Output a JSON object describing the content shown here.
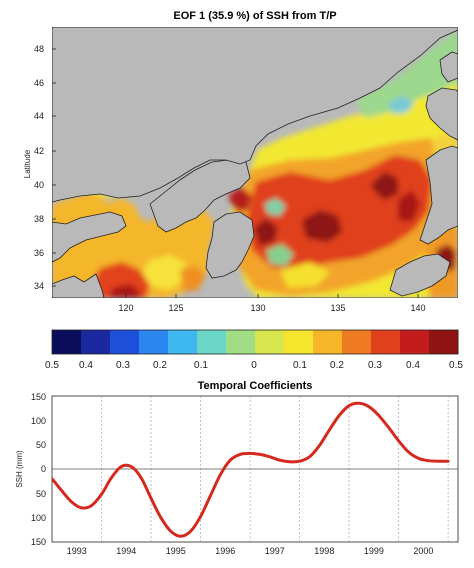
{
  "chart_data": [
    {
      "type": "heatmap",
      "title": "EOF 1 (35.9 %) of SSH from T/P",
      "xlabel": "",
      "ylabel": "Latitude",
      "x_ticks": [
        "120",
        "125",
        "130",
        "135",
        "140"
      ],
      "y_ticks": [
        "34",
        "36",
        "38",
        "40",
        "42",
        "44",
        "46",
        "48"
      ],
      "xlim": [
        117.5,
        142.2
      ],
      "ylim": [
        33.3,
        49.2
      ],
      "land_color": "#b9b9b9",
      "field_hotspots": [
        {
          "lon": 122.0,
          "lat": 33.8,
          "value": 0.4
        },
        {
          "lon": 128.8,
          "lat": 39.0,
          "value": 0.45
        },
        {
          "lon": 129.5,
          "lat": 36.8,
          "value": 0.48
        },
        {
          "lon": 133.2,
          "lat": 37.3,
          "value": 0.5
        },
        {
          "lon": 137.8,
          "lat": 39.3,
          "value": 0.45
        },
        {
          "lon": 140.5,
          "lat": 38.5,
          "value": 0.4
        },
        {
          "lon": 141.5,
          "lat": 35.6,
          "value": 0.45
        },
        {
          "lon": 137.5,
          "lat": 45.0,
          "value": 0.05
        },
        {
          "lon": 140.5,
          "lat": 48.0,
          "value": 0.02
        },
        {
          "lon": 127.5,
          "lat": 43.0,
          "value": 0.12
        }
      ]
    },
    {
      "type": "colorbar",
      "labels": [
        "0.5",
        "0.4",
        "0.3",
        "0.2",
        "0.1",
        "0",
        "0.1",
        "0.2",
        "0.3",
        "0.4",
        "0.5"
      ],
      "colors": [
        "#0b0d5c",
        "#1a2a9e",
        "#1e4fd8",
        "#2b86f0",
        "#3fb7ef",
        "#6ad6c7",
        "#a0dd84",
        "#d7e64c",
        "#f5e62d",
        "#f7b62a",
        "#ee7a22",
        "#e1401d",
        "#c41c1c",
        "#8e1414"
      ]
    },
    {
      "type": "line",
      "title": "Temporal Coefficients",
      "xlabel": "",
      "ylabel": "SSH (mm)",
      "x_ticks": [
        "1993",
        "1994",
        "1995",
        "1996",
        "1997",
        "1998",
        "1999",
        "2000"
      ],
      "y_ticks": [
        "150",
        "100",
        "50",
        "0",
        "50",
        "100",
        "150"
      ],
      "xlim": [
        1992.5,
        2000.7
      ],
      "ylim": [
        -150,
        150
      ],
      "series": [
        {
          "color": "#d42a1e",
          "x": [
            1992.5,
            1992.7,
            1992.9,
            1993.1,
            1993.3,
            1993.5,
            1993.7,
            1993.9,
            1994.1,
            1994.3,
            1994.5,
            1994.7,
            1994.9,
            1995.1,
            1995.3,
            1995.5,
            1995.7,
            1995.9,
            1996.1,
            1996.3,
            1996.5,
            1996.7,
            1996.9,
            1997.1,
            1997.3,
            1997.5,
            1997.7,
            1997.9,
            1998.1,
            1998.3,
            1998.5,
            1998.7,
            1998.9,
            1999.1,
            1999.3,
            1999.5,
            1999.7,
            1999.9,
            2000.1,
            2000.3,
            2000.5
          ],
          "y": [
            -20,
            -45,
            -68,
            -80,
            -75,
            -52,
            -18,
            5,
            5,
            -18,
            -60,
            -100,
            -128,
            -138,
            -128,
            -98,
            -55,
            -12,
            18,
            30,
            32,
            30,
            25,
            18,
            15,
            16,
            25,
            48,
            80,
            110,
            130,
            135,
            128,
            110,
            85,
            58,
            35,
            22,
            17,
            16,
            16
          ]
        }
      ]
    }
  ]
}
